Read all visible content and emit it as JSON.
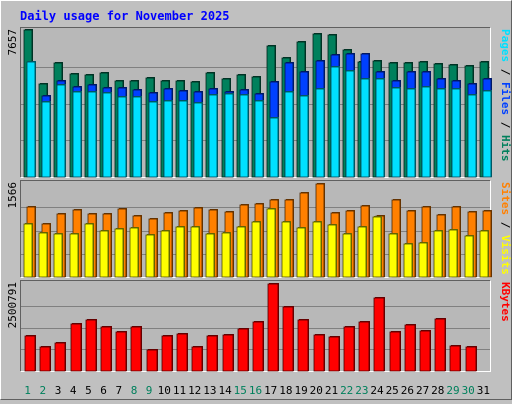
{
  "title": "Daily usage for November 2025",
  "colors": {
    "background": "#c0c0c0",
    "plot_background": "#b8b8b8",
    "title": "#0000ff",
    "hits": "#00805c",
    "files": "#0040ff",
    "pages": "#00e0ff",
    "visits": "#ffff00",
    "sites": "#ff8000",
    "kbytes": "#ff0000",
    "weekend_label": "#00805c",
    "weekday_label": "#000000"
  },
  "chart_data": [
    {
      "type": "bar",
      "panel": "top",
      "ytick_label": "7657",
      "right_labels": [
        {
          "text": "Pages",
          "color": "#00e0ff"
        },
        {
          "text": " / ",
          "color": "#000000"
        },
        {
          "text": "Files",
          "color": "#0040ff"
        },
        {
          "text": " / ",
          "color": "#000000"
        },
        {
          "text": "Hits",
          "color": "#00805c"
        }
      ],
      "ymax": 7657,
      "series": [
        {
          "name": "Hits",
          "values": [
            7657,
            4850,
            5920,
            5390,
            5330,
            5420,
            5000,
            4990,
            5180,
            5010,
            5010,
            4970,
            5410,
            5100,
            5290,
            5190,
            6830,
            6220,
            7020,
            7430,
            7400,
            6590,
            6010,
            6060,
            5940,
            5940,
            6010,
            5890,
            5850,
            5770,
            6000
          ]
        },
        {
          "name": "Files",
          "values": [
            5100,
            4230,
            5010,
            4690,
            4810,
            4640,
            4640,
            4550,
            4390,
            4560,
            4490,
            4420,
            4560,
            4420,
            4540,
            4330,
            4950,
            5930,
            5490,
            6060,
            6380,
            6400,
            6400,
            5490,
            5000,
            5470,
            5470,
            5120,
            4980,
            4820,
            5090
          ]
        },
        {
          "name": "Pages",
          "values": [
            5990,
            3900,
            4810,
            4450,
            4450,
            4390,
            4170,
            4170,
            3900,
            3960,
            3960,
            3850,
            4250,
            4330,
            4260,
            3940,
            3080,
            4430,
            4220,
            4580,
            5730,
            5540,
            5090,
            5130,
            4650,
            4560,
            4700,
            4560,
            4560,
            4280,
            4470
          ]
        }
      ]
    },
    {
      "type": "bar",
      "panel": "middle",
      "ytick_label": "1566",
      "right_labels": [
        {
          "text": "Sites",
          "color": "#ff8000"
        },
        {
          "text": " / ",
          "color": "#000000"
        },
        {
          "text": "Visits",
          "color": "#ffff00"
        }
      ],
      "ymax": 1566,
      "series": [
        {
          "name": "Sites",
          "values": [
            1181,
            888,
            1067,
            1122,
            1055,
            1065,
            1144,
            1030,
            970,
            1081,
            1113,
            1170,
            1122,
            1090,
            1205,
            1227,
            1302,
            1302,
            1420,
            1566,
            1081,
            1103,
            1200,
            1021,
            1297,
            1113,
            1173,
            1050,
            1173,
            1100,
            1110
          ]
        },
        {
          "name": "Visits",
          "values": [
            889,
            740,
            730,
            730,
            888,
            770,
            810,
            820,
            700,
            770,
            850,
            840,
            720,
            740,
            850,
            920,
            1140,
            920,
            830,
            920,
            880,
            730,
            840,
            1010,
            720,
            550,
            570,
            770,
            790,
            690,
            770
          ]
        }
      ]
    },
    {
      "type": "bar",
      "panel": "bottom",
      "ytick_label": "2500791",
      "right_labels": [
        {
          "text": "KBytes",
          "color": "#ff0000"
        }
      ],
      "ymax": 2500791,
      "series": [
        {
          "name": "KBytes",
          "values": [
            1006000,
            683000,
            792000,
            1345000,
            1470000,
            1268000,
            1110000,
            1262000,
            602000,
            1006000,
            1077000,
            688000,
            998000,
            1027000,
            1208000,
            1396000,
            2500791,
            1845000,
            1455000,
            1026000,
            969000,
            1256000,
            1397000,
            2097000,
            1121000,
            1324000,
            1137000,
            1508000,
            732000,
            685000,
            0
          ]
        }
      ]
    }
  ],
  "days": [
    {
      "label": "1",
      "weekend": true
    },
    {
      "label": "2",
      "weekend": true
    },
    {
      "label": "3",
      "weekend": false
    },
    {
      "label": "4",
      "weekend": false
    },
    {
      "label": "5",
      "weekend": false
    },
    {
      "label": "6",
      "weekend": false
    },
    {
      "label": "7",
      "weekend": false
    },
    {
      "label": "8",
      "weekend": true
    },
    {
      "label": "9",
      "weekend": true
    },
    {
      "label": "10",
      "weekend": false
    },
    {
      "label": "11",
      "weekend": false
    },
    {
      "label": "12",
      "weekend": false
    },
    {
      "label": "13",
      "weekend": false
    },
    {
      "label": "14",
      "weekend": false
    },
    {
      "label": "15",
      "weekend": true
    },
    {
      "label": "16",
      "weekend": true
    },
    {
      "label": "17",
      "weekend": false
    },
    {
      "label": "18",
      "weekend": false
    },
    {
      "label": "19",
      "weekend": false
    },
    {
      "label": "20",
      "weekend": false
    },
    {
      "label": "21",
      "weekend": false
    },
    {
      "label": "22",
      "weekend": true
    },
    {
      "label": "23",
      "weekend": true
    },
    {
      "label": "24",
      "weekend": false
    },
    {
      "label": "25",
      "weekend": false
    },
    {
      "label": "26",
      "weekend": false
    },
    {
      "label": "27",
      "weekend": false
    },
    {
      "label": "28",
      "weekend": false
    },
    {
      "label": "29",
      "weekend": true
    },
    {
      "label": "30",
      "weekend": true
    },
    {
      "label": "31",
      "weekend": false
    }
  ]
}
